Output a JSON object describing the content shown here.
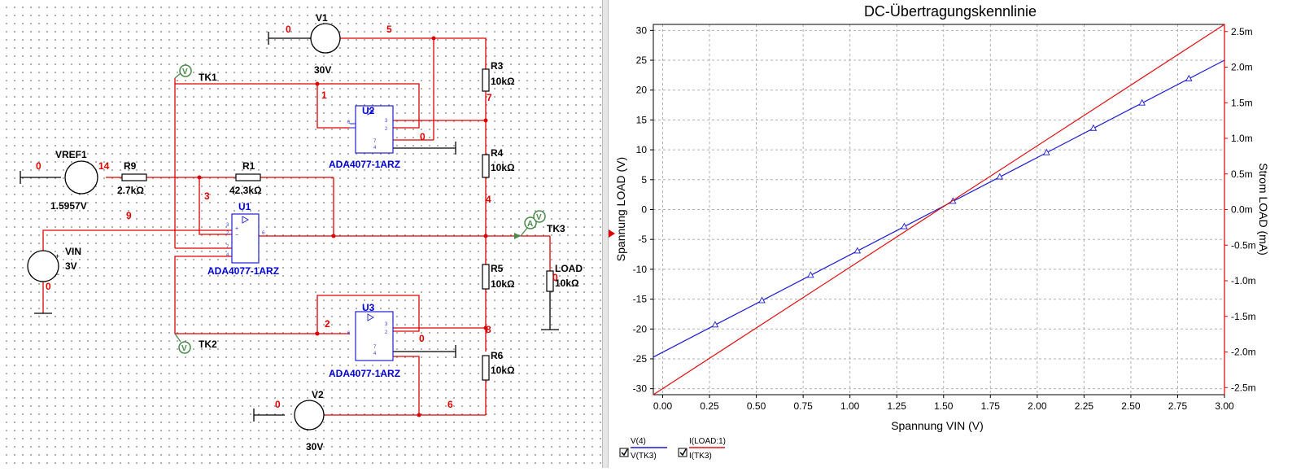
{
  "schematic": {
    "nets": {
      "n0a": "0",
      "n5": "5",
      "n1": "1",
      "n7": "7",
      "n0b": "0",
      "n0c": "0",
      "n14": "14",
      "n3": "3",
      "n4": "4",
      "n9": "9",
      "n0d": "0",
      "n0e": "0",
      "n2": "2",
      "n8": "8",
      "n0f": "0",
      "n0g": "0",
      "n6": "6"
    },
    "v1": {
      "name": "V1",
      "value": "30V"
    },
    "v2": {
      "name": "V2",
      "value": "30V"
    },
    "vref": {
      "name": "VREF1",
      "value": "1.5957V"
    },
    "vin": {
      "name": "VIN",
      "value": "3V"
    },
    "r9": {
      "name": "R9",
      "value": "2.7kΩ"
    },
    "r1": {
      "name": "R1",
      "value": "42.3kΩ"
    },
    "r3": {
      "name": "R3",
      "value": "10kΩ"
    },
    "r4": {
      "name": "R4",
      "value": "10kΩ"
    },
    "r5": {
      "name": "R5",
      "value": "10kΩ"
    },
    "r6": {
      "name": "R6",
      "value": "10kΩ"
    },
    "load": {
      "name": "LOAD",
      "value": "10kΩ"
    },
    "u1": {
      "name": "U1",
      "part": "ADA4077-1ARZ"
    },
    "u2": {
      "name": "U2",
      "part": "ADA4077-1ARZ"
    },
    "u3": {
      "name": "U3",
      "part": "ADA4077-1ARZ"
    },
    "probes": {
      "tk1": "TK1",
      "tk2": "TK2",
      "tk3": "TK3",
      "v_icon": "V",
      "a_icon": "A"
    }
  },
  "chart_data": {
    "type": "line",
    "title": "DC-Übertragungskennlinie",
    "xlabel": "Spannung VIN (V)",
    "ylabel": "Spannung LOAD (V)",
    "y2label": "Strom LOAD (mA)",
    "xlim": [
      -0.05,
      3.0
    ],
    "ylim": [
      -31,
      31
    ],
    "y2lim": [
      -2.6,
      2.6
    ],
    "x_ticks": [
      "0.00",
      "0.25",
      "0.50",
      "0.75",
      "1.00",
      "1.25",
      "1.50",
      "1.75",
      "2.00",
      "2.25",
      "2.50",
      "2.75",
      "3.00"
    ],
    "y_ticks": [
      "30",
      "25",
      "20",
      "15",
      "10",
      "5",
      "0",
      "-5",
      "-10",
      "-15",
      "-20",
      "-25",
      "-30"
    ],
    "y2_ticks": [
      "2.5m",
      "2.0m",
      "1.5m",
      "1.0m",
      "0.5m",
      "0.0m",
      "-0.5m",
      "-1.0m",
      "-1.5m",
      "-2.0m",
      "-2.5m"
    ],
    "grid": true,
    "legend_position": "bottom-left",
    "series": [
      {
        "name": "V(4)",
        "color": "#1a1ad4",
        "axis": "left",
        "x": [
          -0.05,
          3.0
        ],
        "y": [
          -24.7,
          25.0
        ],
        "marker": "triangle",
        "marker_x": [
          0.28,
          0.53,
          0.79,
          1.04,
          1.29,
          1.55,
          1.8,
          2.05,
          2.3,
          2.56,
          2.81
        ]
      },
      {
        "name": "I(LOAD:1)",
        "color": "#e01010",
        "axis": "right",
        "x": [
          -0.05,
          3.0
        ],
        "y": [
          -2.6,
          2.6
        ]
      }
    ],
    "legend": [
      {
        "label_top": "V(4)",
        "label_bottom": "V(TK3)",
        "color": "#1a1ad4",
        "checked": true
      },
      {
        "label_top": "I(LOAD:1)",
        "label_bottom": "I(TK3)",
        "color": "#e01010",
        "checked": true
      }
    ]
  }
}
